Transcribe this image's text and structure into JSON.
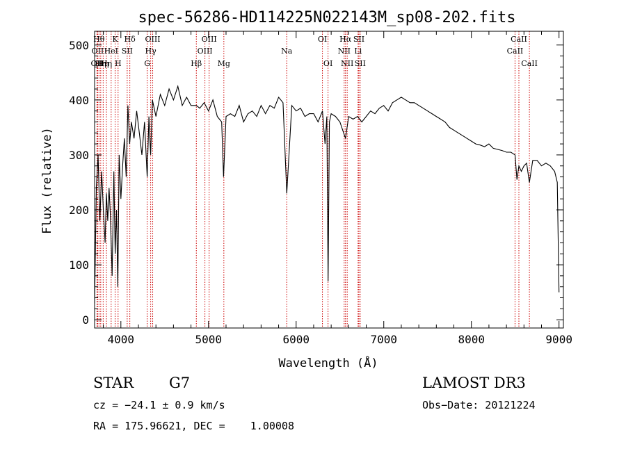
{
  "chart_data": {
    "type": "line",
    "title": "spec-56286-HD114225N022143M_sp08-202.fits",
    "xlabel": "Wavelength (Å)",
    "ylabel": "Flux (relative)",
    "xlim": [
      3700,
      9050
    ],
    "ylim": [
      -15,
      525
    ],
    "xticks": [
      4000,
      5000,
      6000,
      7000,
      8000,
      9000
    ],
    "yticks": [
      0,
      100,
      200,
      300,
      400,
      500
    ],
    "grid": false,
    "line_color": "#000000",
    "marker_color": "#cc0000",
    "series": [
      {
        "x": [
          3700,
          3720,
          3740,
          3760,
          3780,
          3800,
          3820,
          3835,
          3850,
          3865,
          3880,
          3900,
          3920,
          3935,
          3950,
          3965,
          3980,
          4000,
          4020,
          4040,
          4060,
          4080,
          4100,
          4120,
          4150,
          4180,
          4210,
          4240,
          4270,
          4300,
          4320,
          4340,
          4360,
          4400,
          4450,
          4500,
          4550,
          4600,
          4650,
          4700,
          4750,
          4800,
          4861,
          4900,
          4950,
          5000,
          5050,
          5100,
          5150,
          5172,
          5200,
          5250,
          5300,
          5350,
          5400,
          5450,
          5500,
          5550,
          5600,
          5650,
          5700,
          5750,
          5800,
          5850,
          5893,
          5950,
          6000,
          6050,
          6100,
          6150,
          6200,
          6250,
          6300,
          6330,
          6350,
          6365,
          6380,
          6400,
          6450,
          6500,
          6563,
          6600,
          6650,
          6700,
          6750,
          6800,
          6850,
          6900,
          6950,
          7000,
          7050,
          7100,
          7150,
          7200,
          7250,
          7300,
          7350,
          7400,
          7450,
          7500,
          7550,
          7600,
          7650,
          7700,
          7750,
          7800,
          7850,
          7900,
          7950,
          8000,
          8050,
          8100,
          8150,
          8200,
          8250,
          8300,
          8350,
          8400,
          8450,
          8498,
          8520,
          8542,
          8570,
          8600,
          8630,
          8662,
          8700,
          8750,
          8800,
          8850,
          8900,
          8950,
          8980,
          9000
        ],
        "y": [
          30,
          240,
          300,
          180,
          270,
          200,
          140,
          230,
          180,
          240,
          190,
          80,
          270,
          120,
          200,
          60,
          300,
          220,
          280,
          330,
          260,
          390,
          320,
          360,
          330,
          380,
          340,
          300,
          360,
          260,
          370,
          300,
          400,
          370,
          410,
          390,
          420,
          400,
          425,
          390,
          405,
          390,
          390,
          385,
          395,
          380,
          400,
          370,
          360,
          260,
          370,
          375,
          370,
          390,
          360,
          375,
          380,
          370,
          390,
          375,
          390,
          385,
          405,
          395,
          230,
          390,
          380,
          385,
          370,
          375,
          375,
          360,
          380,
          320,
          370,
          70,
          360,
          375,
          370,
          360,
          330,
          370,
          365,
          370,
          360,
          370,
          380,
          375,
          385,
          390,
          380,
          395,
          400,
          405,
          400,
          395,
          395,
          390,
          385,
          380,
          375,
          370,
          365,
          360,
          350,
          345,
          340,
          335,
          330,
          325,
          320,
          318,
          315,
          320,
          312,
          310,
          308,
          305,
          305,
          300,
          255,
          280,
          270,
          280,
          285,
          250,
          290,
          290,
          280,
          285,
          280,
          270,
          250,
          50
        ]
      }
    ],
    "lines": [
      {
        "wavelength": 3727,
        "label": "OII",
        "row": 2
      },
      {
        "wavelength": 3735,
        "label": "OII",
        "row": 1
      },
      {
        "wavelength": 3750,
        "label": "Hθ",
        "row": 0
      },
      {
        "wavelength": 3770,
        "label": "Hη",
        "row": 2
      },
      {
        "wavelength": 3798,
        "label": "Hη",
        "row": 2
      },
      {
        "wavelength": 3835,
        "label": "Hη",
        "row": 2
      },
      {
        "wavelength": 3889,
        "label": "HeI",
        "row": 1
      },
      {
        "wavelength": 3934,
        "label": "K",
        "row": 0
      },
      {
        "wavelength": 3968,
        "label": "H",
        "row": 2
      },
      {
        "wavelength": 4072,
        "label": "SII",
        "row": 1
      },
      {
        "wavelength": 4102,
        "label": "Hδ",
        "row": 0
      },
      {
        "wavelength": 4300,
        "label": "G",
        "row": 2
      },
      {
        "wavelength": 4340,
        "label": "Hγ",
        "row": 1
      },
      {
        "wavelength": 4363,
        "label": "OIII",
        "row": 0
      },
      {
        "wavelength": 4861,
        "label": "Hβ",
        "row": 2
      },
      {
        "wavelength": 4959,
        "label": "OIII",
        "row": 1
      },
      {
        "wavelength": 5007,
        "label": "OIII",
        "row": 0
      },
      {
        "wavelength": 5175,
        "label": "Mg",
        "row": 2
      },
      {
        "wavelength": 5893,
        "label": "Na",
        "row": 1
      },
      {
        "wavelength": 6300,
        "label": "OI",
        "row": 0
      },
      {
        "wavelength": 6364,
        "label": "OI",
        "row": 2
      },
      {
        "wavelength": 6548,
        "label": "NII",
        "row": 1
      },
      {
        "wavelength": 6563,
        "label": "Hα",
        "row": 0
      },
      {
        "wavelength": 6583,
        "label": "NII",
        "row": 2
      },
      {
        "wavelength": 6707,
        "label": "Li",
        "row": 1
      },
      {
        "wavelength": 6716,
        "label": "SII",
        "row": 0
      },
      {
        "wavelength": 6731,
        "label": "SII",
        "row": 2
      },
      {
        "wavelength": 8498,
        "label": "CaII",
        "row": 1
      },
      {
        "wavelength": 8542,
        "label": "CaII",
        "row": 0
      },
      {
        "wavelength": 8662,
        "label": "CaII",
        "row": 2
      }
    ]
  },
  "info": {
    "object_class": "STAR",
    "subclass": "G7",
    "survey": "LAMOST DR3",
    "cz": "cz = −24.1 ± 0.9 km/s",
    "obs_date": "Obs−Date: 20121224",
    "radec": "RA = 175.96621, DEC =    1.00008"
  }
}
